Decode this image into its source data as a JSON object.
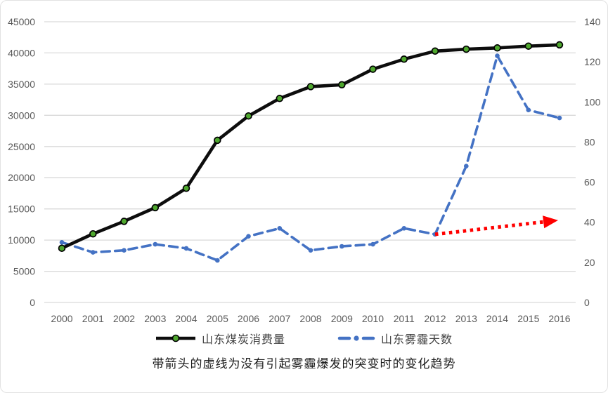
{
  "chart_data": {
    "type": "line",
    "categories": [
      "2000",
      "2001",
      "2002",
      "2003",
      "2004",
      "2005",
      "2006",
      "2007",
      "2008",
      "2009",
      "2010",
      "2011",
      "2012",
      "2013",
      "2014",
      "2015",
      "2016"
    ],
    "series": [
      {
        "name": "山东煤炭消费量",
        "axis": "left",
        "style": "solid",
        "marker": "circle",
        "values": [
          8700,
          11000,
          13000,
          15200,
          18300,
          26000,
          29900,
          32700,
          34600,
          34900,
          37400,
          39000,
          40300,
          40600,
          40800,
          41100,
          41300
        ]
      },
      {
        "name": "山东雾霾天数",
        "axis": "right",
        "style": "dashed",
        "marker": "dot",
        "values": [
          30,
          25,
          26,
          29,
          27,
          21,
          33,
          37,
          26,
          28,
          29,
          37,
          34,
          68,
          123,
          96,
          92
        ]
      }
    ],
    "left_axis": {
      "min": 0,
      "max": 45000,
      "step": 5000,
      "tick_labels": [
        "0",
        "5000",
        "10000",
        "15000",
        "20000",
        "25000",
        "30000",
        "35000",
        "40000",
        "45000"
      ]
    },
    "right_axis": {
      "min": 0,
      "max": 140,
      "step": 20,
      "tick_labels": [
        "0",
        "20",
        "40",
        "60",
        "80",
        "100",
        "120",
        "140"
      ]
    },
    "grid": true,
    "legend_position": "bottom",
    "annotation": {
      "type": "dotted-arrow",
      "axis": "right",
      "from": {
        "x": "2012",
        "value": 34
      },
      "to": {
        "x": "2016",
        "value": 41
      }
    },
    "caption": "带箭头的虚线为没有引起雾霾爆发的突变时的变化趋势"
  },
  "colors": {
    "coal_line": "#0D0D0D",
    "coal_marker_fill": "#4EA72E",
    "coal_marker_stroke": "#000000",
    "haze_line": "#4472C4",
    "arrow": "#FF0000",
    "gridline": "#D9D9D9",
    "axis_text": "#595959",
    "background": "#FFFFFF"
  }
}
